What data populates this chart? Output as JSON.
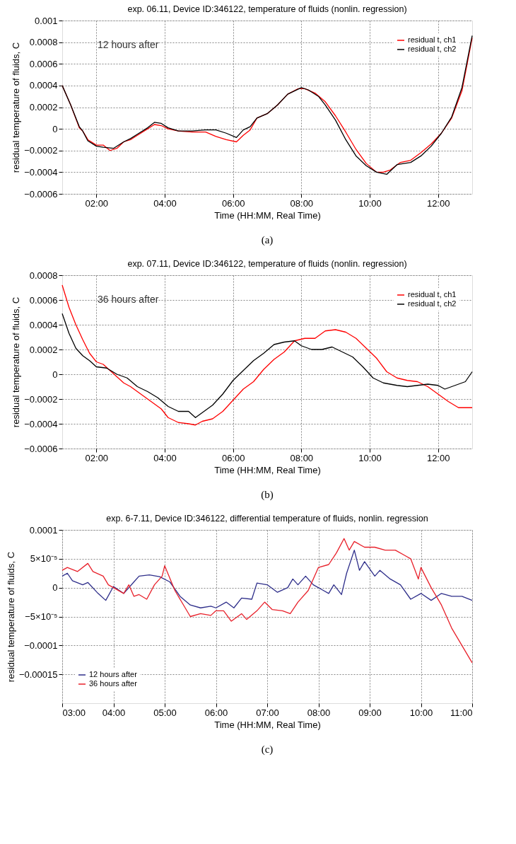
{
  "chart_data": [
    {
      "type": "line",
      "title": "exp. 06.11, Device ID:346122, temperature of fluids (nonlin. regression)",
      "xlabel": "Time (HH:MM, Real Time)",
      "ylabel": "residual temperature of fluids, C",
      "xlim": [
        1,
        13
      ],
      "xticks": [
        {
          "value": 2,
          "label": "02:00"
        },
        {
          "value": 4,
          "label": "04:00"
        },
        {
          "value": 6,
          "label": "06:00"
        },
        {
          "value": 8,
          "label": "08:00"
        },
        {
          "value": 10,
          "label": "10:00"
        },
        {
          "value": 12,
          "label": "12:00"
        }
      ],
      "ylim": [
        -0.0006,
        0.001
      ],
      "yticks": [
        -0.0006,
        -0.0004,
        -0.0002,
        0,
        0.0002,
        0.0004,
        0.0006,
        0.0008,
        0.001
      ],
      "grid": true,
      "legend": "top right",
      "line_style": "solid",
      "annotations": [
        "12 hours after",
        "(a)"
      ],
      "series": [
        {
          "name": "residual t, ch1",
          "color": "#ff0000",
          "x": [
            1.0,
            1.25,
            1.5,
            1.6,
            1.75,
            2.0,
            2.2,
            2.4,
            2.6,
            2.8,
            3.0,
            3.2,
            3.5,
            3.7,
            3.9,
            4.1,
            4.4,
            4.8,
            5.2,
            5.5,
            5.8,
            6.1,
            6.3,
            6.5,
            6.7,
            7.0,
            7.3,
            7.6,
            7.9,
            8.1,
            8.4,
            8.7,
            9.0,
            9.3,
            9.6,
            9.9,
            10.2,
            10.4,
            10.6,
            10.9,
            11.2,
            11.5,
            11.8,
            12.1,
            12.4,
            12.7,
            13.0
          ],
          "values": [
            0.0004,
            0.00022,
            1e-05,
            -2e-05,
            -0.0001,
            -0.00015,
            -0.00015,
            -0.0002,
            -0.00018,
            -0.00012,
            -0.0001,
            -6e-05,
            0.0,
            4e-05,
            3e-05,
            0.0,
            -2e-05,
            -3e-05,
            -3e-05,
            -7e-05,
            -0.0001,
            -0.00012,
            -6e-05,
            -1e-05,
            0.0001,
            0.00014,
            0.00022,
            0.00032,
            0.00037,
            0.00037,
            0.00033,
            0.00025,
            0.00012,
            -3e-05,
            -0.00019,
            -0.00032,
            -0.0004,
            -0.0004,
            -0.00038,
            -0.00031,
            -0.00029,
            -0.00022,
            -0.00014,
            -4e-05,
            0.0001,
            0.00035,
            0.00084
          ]
        },
        {
          "name": "residual t, ch2",
          "color": "#000000",
          "x": [
            1.0,
            1.25,
            1.5,
            1.6,
            1.75,
            2.0,
            2.2,
            2.5,
            2.8,
            3.0,
            3.2,
            3.5,
            3.7,
            3.9,
            4.1,
            4.4,
            4.8,
            5.2,
            5.5,
            5.8,
            6.1,
            6.3,
            6.5,
            6.7,
            7.0,
            7.3,
            7.6,
            8.0,
            8.2,
            8.5,
            8.7,
            9.0,
            9.3,
            9.6,
            9.9,
            10.2,
            10.5,
            10.8,
            11.2,
            11.5,
            11.8,
            12.1,
            12.4,
            12.7,
            13.0
          ],
          "values": [
            0.0004,
            0.00022,
            2e-05,
            -2e-05,
            -0.00011,
            -0.00016,
            -0.00017,
            -0.00018,
            -0.00012,
            -9e-05,
            -5e-05,
            1e-05,
            6e-05,
            5e-05,
            1e-05,
            -2e-05,
            -2e-05,
            -1e-05,
            -1e-05,
            -4e-05,
            -8e-05,
            -1e-05,
            2e-05,
            0.0001,
            0.00014,
            0.00022,
            0.00032,
            0.00038,
            0.00036,
            0.0003,
            0.00022,
            8e-05,
            -0.0001,
            -0.00025,
            -0.00034,
            -0.0004,
            -0.00042,
            -0.00033,
            -0.00031,
            -0.00025,
            -0.00016,
            -4e-05,
            0.00011,
            0.00038,
            0.00086
          ]
        }
      ]
    },
    {
      "type": "line",
      "title": "exp. 07.11, Device ID:346122, temperature of fluids (nonlin. regression)",
      "xlabel": "Time (HH:MM, Real Time)",
      "ylabel": "residual temperature of fluids, C",
      "xlim": [
        1,
        13
      ],
      "xticks": [
        {
          "value": 2,
          "label": "02:00"
        },
        {
          "value": 4,
          "label": "04:00"
        },
        {
          "value": 6,
          "label": "06:00"
        },
        {
          "value": 8,
          "label": "08:00"
        },
        {
          "value": 10,
          "label": "10:00"
        },
        {
          "value": 12,
          "label": "12:00"
        }
      ],
      "ylim": [
        -0.0006,
        0.0008
      ],
      "yticks": [
        -0.0006,
        -0.0004,
        -0.0002,
        0,
        0.0002,
        0.0004,
        0.0006,
        0.0008
      ],
      "grid": true,
      "legend": "top right",
      "line_style": "solid",
      "annotations": [
        "36 hours after",
        "(b)"
      ],
      "series": [
        {
          "name": "residual t, ch1",
          "color": "#ff0000",
          "x": [
            1.0,
            1.2,
            1.4,
            1.6,
            1.8,
            2.0,
            2.2,
            2.4,
            2.6,
            2.8,
            3.0,
            3.3,
            3.6,
            3.9,
            4.1,
            4.4,
            4.7,
            4.9,
            5.1,
            5.4,
            5.7,
            6.0,
            6.3,
            6.6,
            6.9,
            7.2,
            7.5,
            7.8,
            8.1,
            8.4,
            8.7,
            9.0,
            9.3,
            9.6,
            9.9,
            10.2,
            10.5,
            10.8,
            11.1,
            11.4,
            11.7,
            12.0,
            12.3,
            12.6,
            13.0
          ],
          "values": [
            0.00072,
            0.00054,
            0.0004,
            0.00028,
            0.00017,
            0.0001,
            8e-05,
            3e-05,
            -2e-05,
            -7e-05,
            -0.0001,
            -0.00016,
            -0.00022,
            -0.00028,
            -0.00035,
            -0.00039,
            -0.0004,
            -0.00041,
            -0.00038,
            -0.00036,
            -0.0003,
            -0.00021,
            -0.00012,
            -6e-05,
            4e-05,
            0.00012,
            0.00018,
            0.00027,
            0.00029,
            0.00029,
            0.00035,
            0.00036,
            0.00034,
            0.00029,
            0.00021,
            0.00013,
            2e-05,
            -3e-05,
            -5e-05,
            -6e-05,
            -0.0001,
            -0.00016,
            -0.00022,
            -0.00027,
            -0.00027
          ]
        },
        {
          "name": "residual t, ch2",
          "color": "#000000",
          "x": [
            1.0,
            1.2,
            1.4,
            1.6,
            1.8,
            2.0,
            2.3,
            2.6,
            2.9,
            3.2,
            3.5,
            3.8,
            4.1,
            4.4,
            4.7,
            4.9,
            5.1,
            5.4,
            5.7,
            6.0,
            6.3,
            6.6,
            6.9,
            7.2,
            7.5,
            7.8,
            8.0,
            8.3,
            8.6,
            8.9,
            9.2,
            9.5,
            9.8,
            10.1,
            10.4,
            10.8,
            11.1,
            11.4,
            11.7,
            12.0,
            12.2,
            12.5,
            12.8,
            13.0
          ],
          "values": [
            0.00049,
            0.00033,
            0.00021,
            0.00015,
            0.00011,
            6e-05,
            5e-05,
            0.0,
            -3e-05,
            -0.0001,
            -0.00014,
            -0.00019,
            -0.00026,
            -0.0003,
            -0.0003,
            -0.00035,
            -0.00031,
            -0.00025,
            -0.00016,
            -5e-05,
            3e-05,
            0.00011,
            0.00017,
            0.00024,
            0.00026,
            0.00027,
            0.00023,
            0.0002,
            0.0002,
            0.00022,
            0.00018,
            0.00014,
            6e-05,
            -3e-05,
            -7e-05,
            -9e-05,
            -0.0001,
            -9e-05,
            -8e-05,
            -9e-05,
            -0.00012,
            -9e-05,
            -6e-05,
            2e-05
          ]
        }
      ]
    },
    {
      "type": "line",
      "title": "exp. 6-7.11, Device ID:346122, differential temperature of fluids, nonlin. regression",
      "xlabel": "Time (HH:MM, Real Time)",
      "ylabel": "residual temperature of fluids, C",
      "xlim": [
        3,
        11
      ],
      "xticks": [
        {
          "value": 3,
          "label": "03:00"
        },
        {
          "value": 4,
          "label": "04:00"
        },
        {
          "value": 5,
          "label": "05:00"
        },
        {
          "value": 6,
          "label": "06:00"
        },
        {
          "value": 7,
          "label": "07:00"
        },
        {
          "value": 8,
          "label": "08:00"
        },
        {
          "value": 9,
          "label": "09:00"
        },
        {
          "value": 10,
          "label": "10:00"
        },
        {
          "value": 11,
          "label": "11:00"
        }
      ],
      "ylim": [
        -0.0002,
        0.0001
      ],
      "yticks": [
        -0.00015,
        -0.0001,
        {
          "value": -5e-05,
          "label": "−5×10⁻⁵"
        },
        0,
        {
          "value": 5e-05,
          "label": "5×10⁻⁵"
        },
        0.0001
      ],
      "grid": true,
      "legend": "bottom left",
      "line_style": "solid",
      "annotations": [
        "(c)"
      ],
      "series": [
        {
          "name": "12 hours after",
          "color": "#2e2e8a",
          "x": [
            3.0,
            3.1,
            3.2,
            3.4,
            3.5,
            3.7,
            3.85,
            4.0,
            4.2,
            4.4,
            4.5,
            4.7,
            4.9,
            5.1,
            5.3,
            5.5,
            5.7,
            5.9,
            6.0,
            6.2,
            6.35,
            6.5,
            6.7,
            6.8,
            7.0,
            7.2,
            7.4,
            7.5,
            7.6,
            7.75,
            7.9,
            8.1,
            8.2,
            8.3,
            8.45,
            8.55,
            8.7,
            8.8,
            8.9,
            9.1,
            9.2,
            9.4,
            9.6,
            9.8,
            10.0,
            10.2,
            10.4,
            10.6,
            10.8,
            11.0
          ],
          "values": [
            2e-05,
            2.5e-05,
            1.2e-05,
            5e-06,
            9e-06,
            -1e-05,
            -2.2e-05,
            2e-06,
            -1e-05,
            1e-05,
            2e-05,
            2.2e-05,
            1.9e-05,
            1e-05,
            -1.5e-05,
            -3e-05,
            -3.5e-05,
            -3.2e-05,
            -3.5e-05,
            -2.5e-05,
            -3.5e-05,
            -1.8e-05,
            -2e-05,
            8e-06,
            5e-06,
            -8e-06,
            0.0,
            1.5e-05,
            5e-06,
            2e-05,
            5e-06,
            -5e-06,
            -1e-05,
            5e-06,
            -1.2e-05,
            2.5e-05,
            6.5e-05,
            3e-05,
            4.5e-05,
            2e-05,
            3e-05,
            1.5e-05,
            5e-06,
            -2e-05,
            -1e-05,
            -2.2e-05,
            -1e-05,
            -1.5e-05,
            -1.5e-05,
            -2.2e-05
          ]
        },
        {
          "name": "36 hours after",
          "color": "#e8202a",
          "x": [
            3.0,
            3.1,
            3.3,
            3.5,
            3.6,
            3.8,
            3.9,
            4.0,
            4.2,
            4.3,
            4.4,
            4.5,
            4.65,
            4.8,
            4.95,
            5.0,
            5.2,
            5.4,
            5.5,
            5.7,
            5.9,
            6.0,
            6.15,
            6.3,
            6.5,
            6.6,
            6.8,
            6.95,
            7.1,
            7.3,
            7.45,
            7.6,
            7.8,
            8.0,
            8.2,
            8.35,
            8.5,
            8.6,
            8.7,
            8.9,
            9.1,
            9.3,
            9.5,
            9.7,
            9.8,
            9.95,
            10.0,
            10.2,
            10.4,
            10.6,
            10.8,
            11.0
          ],
          "values": [
            3e-05,
            3.5e-05,
            2.8e-05,
            4.2e-05,
            2.8e-05,
            2e-05,
            5e-06,
            0.0,
            -1e-05,
            5e-06,
            -1.5e-05,
            -1.2e-05,
            -2e-05,
            5e-06,
            2e-05,
            3.8e-05,
            -5e-06,
            -3.5e-05,
            -5e-05,
            -4.5e-05,
            -4.8e-05,
            -4e-05,
            -4e-05,
            -5.8e-05,
            -4.5e-05,
            -5.5e-05,
            -4e-05,
            -2.5e-05,
            -3.8e-05,
            -4e-05,
            -4.5e-05,
            -2.5e-05,
            -5e-06,
            3.5e-05,
            4e-05,
            6e-05,
            8.5e-05,
            6.5e-05,
            8e-05,
            7e-05,
            7e-05,
            6.5e-05,
            6.5e-05,
            5.5e-05,
            5e-05,
            1.5e-05,
            3.5e-05,
            0.0,
            -3e-05,
            -7e-05,
            -0.0001,
            -0.00013
          ]
        }
      ]
    }
  ]
}
